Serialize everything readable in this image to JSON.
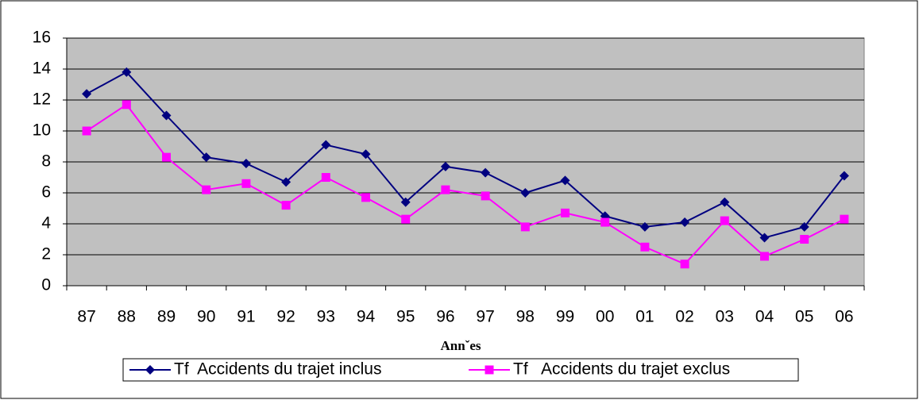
{
  "chart_data": {
    "type": "line",
    "x_label": "Annˇes",
    "categories": [
      "87",
      "88",
      "89",
      "90",
      "91",
      "92",
      "93",
      "94",
      "95",
      "96",
      "97",
      "98",
      "99",
      "00",
      "01",
      "02",
      "03",
      "04",
      "05",
      "06"
    ],
    "series": [
      {
        "name": "Tf  Accidents du trajet inclus",
        "color": "#000080",
        "marker": "diamond",
        "values": [
          12.4,
          13.8,
          11.0,
          8.3,
          7.9,
          6.7,
          9.1,
          8.5,
          5.4,
          7.7,
          7.3,
          6.0,
          6.8,
          4.5,
          3.8,
          4.1,
          5.4,
          3.1,
          3.8,
          7.1
        ]
      },
      {
        "name": "Tf   Accidents du trajet exclus",
        "color": "#ff00ff",
        "marker": "square",
        "values": [
          10.0,
          11.7,
          8.3,
          6.2,
          6.6,
          5.2,
          7.0,
          5.7,
          4.3,
          6.2,
          5.8,
          3.8,
          4.7,
          4.1,
          2.5,
          1.4,
          4.2,
          1.9,
          3.0,
          4.3
        ]
      }
    ],
    "ylim": [
      0,
      16
    ],
    "yticks": [
      0,
      2,
      4,
      6,
      8,
      10,
      12,
      14,
      16
    ],
    "grid": true,
    "legend": "bottom"
  }
}
